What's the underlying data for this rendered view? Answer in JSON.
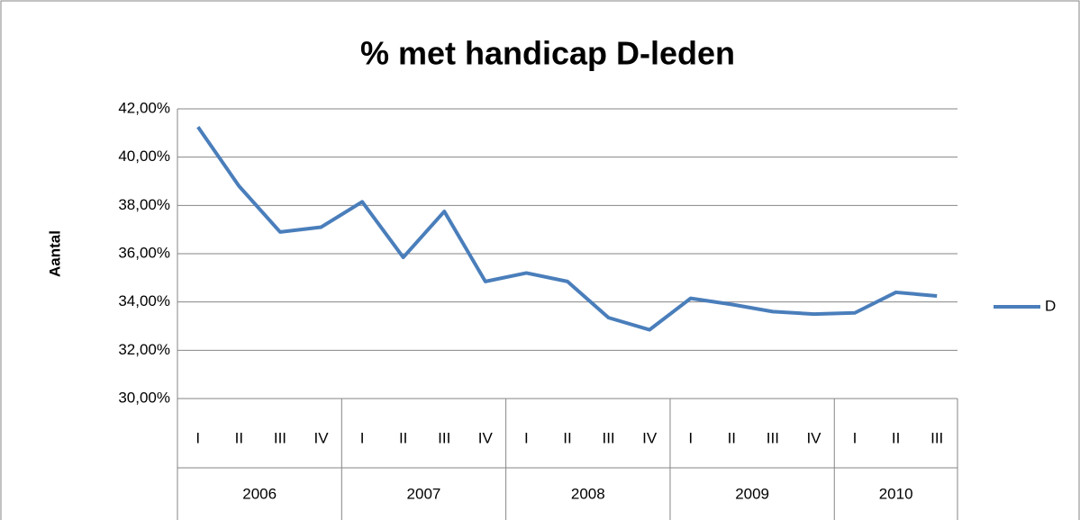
{
  "chart_data": {
    "type": "line",
    "title": "% met handicap D-leden",
    "y_label": "Aantal",
    "groups": [
      {
        "name": "2006",
        "categories": [
          "I",
          "II",
          "III",
          "IV"
        ]
      },
      {
        "name": "2007",
        "categories": [
          "I",
          "II",
          "III",
          "IV"
        ]
      },
      {
        "name": "2008",
        "categories": [
          "I",
          "II",
          "III",
          "IV"
        ]
      },
      {
        "name": "2009",
        "categories": [
          "I",
          "II",
          "III",
          "IV"
        ]
      },
      {
        "name": "2010",
        "categories": [
          "I",
          "II",
          "III"
        ]
      }
    ],
    "series": [
      {
        "name": "D",
        "color": "#4a7ebb",
        "values": [
          41.25,
          38.8,
          36.9,
          37.1,
          38.15,
          35.85,
          37.75,
          34.85,
          35.2,
          34.85,
          33.35,
          32.85,
          34.15,
          33.9,
          33.6,
          33.5,
          33.55,
          34.4,
          34.25
        ]
      }
    ],
    "ylim": [
      30,
      42
    ],
    "yticks": [
      {
        "value": 30,
        "label": "30,00%"
      },
      {
        "value": 32,
        "label": "32,00%"
      },
      {
        "value": 34,
        "label": "34,00%"
      },
      {
        "value": 36,
        "label": "36,00%"
      },
      {
        "value": 38,
        "label": "38,00%"
      },
      {
        "value": 40,
        "label": "40,00%"
      },
      {
        "value": 42,
        "label": "42,00%"
      }
    ],
    "grid": true,
    "legend": "right"
  }
}
